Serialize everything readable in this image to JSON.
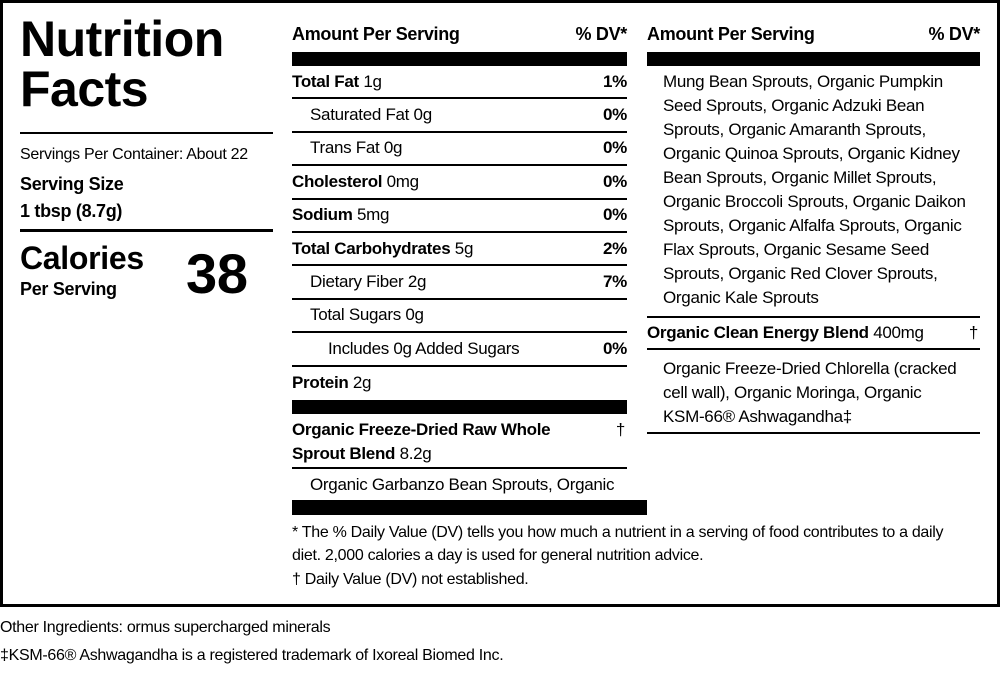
{
  "title": "Nutrition Facts",
  "servings_per_container": "Servings Per Container: About 22",
  "serving_size_label": "Serving Size",
  "serving_size": "1 tbsp (8.7g)",
  "calories_label": "Calories",
  "per_serving": "Per Serving",
  "calories": 38,
  "amount_header": "Amount Per Serving",
  "dv_header": "% DV*",
  "rows": [
    {
      "name": "Total Fat",
      "amount": "1g",
      "dv": "1%",
      "bold": true,
      "level": 0
    },
    {
      "name": "Saturated Fat",
      "amount": "0g",
      "dv": "0%",
      "bold": false,
      "level": 1
    },
    {
      "name": "Trans Fat",
      "amount": "0g",
      "dv": "0%",
      "bold": false,
      "level": 1
    },
    {
      "name": "Cholesterol",
      "amount": "0mg",
      "dv": "0%",
      "bold": true,
      "level": 0
    },
    {
      "name": "Sodium",
      "amount": "5mg",
      "dv": "0%",
      "bold": true,
      "level": 0
    },
    {
      "name": "Total Carbohydrates",
      "amount": "5g",
      "dv": "2%",
      "bold": true,
      "level": 0
    },
    {
      "name": "Dietary Fiber",
      "amount": "2g",
      "dv": "7%",
      "bold": false,
      "level": 1
    },
    {
      "name": "Total Sugars",
      "amount": "0g",
      "bold": false,
      "level": 1
    },
    {
      "name": "Includes",
      "amount": "0g Added Sugars",
      "dv": "0%",
      "bold": false,
      "level": 2
    },
    {
      "name": "Protein",
      "amount": "2g",
      "bold": true,
      "level": 0
    }
  ],
  "blends": [
    {
      "name": "Organic Freeze-Dried Raw Whole Sprout Blend",
      "amount": "8.2g",
      "dv": "†",
      "ingredients": [
        "Organic Garbanzo Bean Sprouts, Organic",
        "Mung Bean Sprouts, Organic Pumpkin Seed Sprouts, Organic Adzuki Bean Sprouts, Organic Amaranth Sprouts, Organic Quinoa Sprouts, Organic Kidney Bean Sprouts, Organic Millet Sprouts, Organic Broccoli Sprouts, Organic Daikon Sprouts, Organic Alfalfa Sprouts, Organic Flax Sprouts, Organic Sesame Seed Sprouts, Organic Red Clover Sprouts, Organic Kale Sprouts"
      ]
    },
    {
      "name": "Organic Clean Energy Blend",
      "amount": "400mg",
      "dv": "†",
      "ingredients": [
        "Organic Freeze-Dried Chlorella (cracked cell wall), Organic Moringa, Organic KSM-66® Ashwagandha‡"
      ]
    }
  ],
  "footnotes": [
    "* The % Daily Value (DV) tells you how much a nutrient in a serving of food contributes to a daily diet. 2,000 calories a day is used for general nutrition advice.",
    "† Daily Value (DV) not established."
  ],
  "other_ingredients": "Other Ingredients: ormus supercharged minerals",
  "trademark": "‡KSM-66® Ashwagandha is a registered trademark of Ixoreal Biomed Inc."
}
